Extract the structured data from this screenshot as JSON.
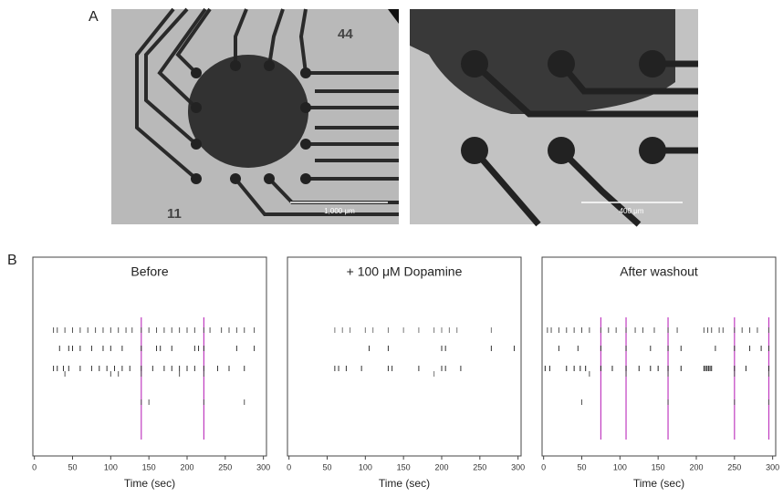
{
  "panels": {
    "a": "A",
    "b": "B"
  },
  "images": [
    {
      "labels": [
        "44",
        "11"
      ],
      "scale_bar": "1,000 μm"
    },
    {
      "scale_bar": "400 μm"
    }
  ],
  "chart_data": [
    {
      "type": "raster",
      "title": "Before",
      "x_label": "Time (sec)",
      "xlim": [
        -2,
        304
      ],
      "xticks": [
        0,
        50,
        100,
        150,
        200,
        250,
        300
      ],
      "series": [
        {
          "color": "#555555",
          "values": [
            25,
            30,
            40,
            50,
            60,
            70,
            80,
            90,
            100,
            110,
            120,
            128,
            140,
            150,
            160,
            170,
            180,
            190,
            200,
            210,
            222,
            230,
            245,
            255,
            265,
            275,
            288
          ]
        },
        {
          "color": "#333333",
          "values": [
            33,
            45,
            50,
            60,
            75,
            90,
            100,
            115,
            140,
            160,
            165,
            180,
            210,
            215,
            222,
            265,
            288
          ]
        },
        {
          "color": "#333333",
          "values": [
            25,
            30,
            38,
            45,
            60,
            75,
            85,
            95,
            105,
            115,
            125,
            140,
            155,
            170,
            180,
            190,
            200,
            210,
            222,
            240,
            255,
            275
          ]
        },
        {
          "color": "#555555",
          "values": [
            40,
            100,
            110,
            140,
            190,
            222
          ]
        },
        {
          "color": "#555555",
          "values": [
            140,
            150,
            222,
            275
          ]
        }
      ],
      "bursts": {
        "color": "#c03cc0",
        "values": [
          140,
          222
        ]
      }
    },
    {
      "type": "raster",
      "title": "+ 100 μM Dopamine",
      "x_label": "Time (sec)",
      "xlim": [
        -2,
        304
      ],
      "xticks": [
        0,
        50,
        100,
        150,
        200,
        250,
        300
      ],
      "series": [
        {
          "color": "#777777",
          "values": [
            60,
            70,
            80,
            100,
            110,
            130,
            150,
            170,
            190,
            200,
            210,
            220,
            265
          ]
        },
        {
          "color": "#333333",
          "values": [
            105,
            130,
            200,
            205,
            265,
            295
          ]
        },
        {
          "color": "#333333",
          "values": [
            60,
            65,
            75,
            95,
            130,
            135,
            170,
            200,
            205,
            225
          ]
        },
        {
          "color": "#777777",
          "values": [
            190
          ]
        },
        {
          "color": "#777777",
          "values": []
        }
      ],
      "bursts": {
        "color": "#c03cc0",
        "values": []
      }
    },
    {
      "type": "raster",
      "title": "After washout",
      "x_label": "Time (sec)",
      "xlim": [
        -2,
        304
      ],
      "xticks": [
        0,
        50,
        100,
        150,
        200,
        250,
        300
      ],
      "series": [
        {
          "color": "#555555",
          "values": [
            5,
            10,
            20,
            30,
            40,
            50,
            60,
            75,
            85,
            95,
            108,
            120,
            130,
            145,
            163,
            175,
            210,
            215,
            220,
            230,
            235,
            250,
            260,
            270,
            280,
            295
          ]
        },
        {
          "color": "#333333",
          "values": [
            20,
            45,
            75,
            108,
            140,
            163,
            180,
            225,
            250,
            270,
            285,
            295
          ]
        },
        {
          "color": "#222222",
          "values": [
            2,
            8,
            30,
            40,
            48,
            55,
            75,
            90,
            108,
            125,
            140,
            150,
            163,
            180,
            210,
            212,
            214,
            216,
            218,
            220,
            250,
            265,
            295
          ]
        },
        {
          "color": "#555555",
          "values": [
            60,
            108,
            163,
            250,
            295
          ]
        },
        {
          "color": "#555555",
          "values": [
            50,
            163,
            250,
            295
          ]
        }
      ],
      "bursts": {
        "color": "#c03cc0",
        "values": [
          75,
          108,
          163,
          250,
          295
        ]
      }
    }
  ]
}
